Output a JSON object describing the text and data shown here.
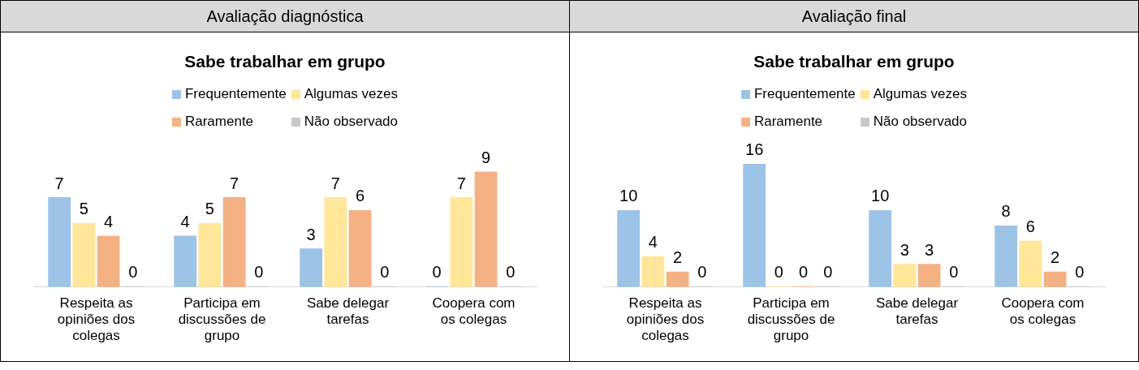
{
  "chart_data": [
    {
      "type": "bar",
      "title": "Avaliação diagnóstica",
      "subtitle": "Sabe trabalhar em grupo",
      "categories": [
        "Respeita as opiniões dos colegas",
        "Participa em discussões de grupo",
        "Sabe delegar tarefas",
        "Coopera com os colegas"
      ],
      "series": [
        {
          "name": "Frequentemente",
          "color": "#9dc3e6",
          "values": [
            7,
            4,
            3,
            0
          ]
        },
        {
          "name": "Algumas vezes",
          "color": "#ffe699",
          "values": [
            5,
            5,
            7,
            7
          ]
        },
        {
          "name": "Raramente",
          "color": "#f4b183",
          "values": [
            4,
            7,
            6,
            9
          ]
        },
        {
          "name": "Não observado",
          "color": "#c9c9c9",
          "values": [
            0,
            0,
            0,
            0
          ]
        }
      ],
      "data_labels": true,
      "legend": "top",
      "grid": false,
      "tick_labels": "x"
    },
    {
      "type": "bar",
      "title": "Avaliação final",
      "subtitle": "Sabe trabalhar em grupo",
      "categories": [
        "Respeita as opiniões dos colegas",
        "Participa em discussões de grupo",
        "Sabe delegar tarefas",
        "Coopera com os colegas"
      ],
      "series": [
        {
          "name": "Frequentemente",
          "color": "#9dc3e6",
          "values": [
            10,
            16,
            10,
            8
          ]
        },
        {
          "name": "Algumas vezes",
          "color": "#ffe699",
          "values": [
            4,
            0,
            3,
            6
          ]
        },
        {
          "name": "Raramente",
          "color": "#f4b183",
          "values": [
            2,
            0,
            3,
            2
          ]
        },
        {
          "name": "Não observado",
          "color": "#c9c9c9",
          "values": [
            0,
            0,
            0,
            0
          ]
        }
      ],
      "data_labels": true,
      "legend": "top",
      "grid": false,
      "tick_labels": "x"
    }
  ]
}
